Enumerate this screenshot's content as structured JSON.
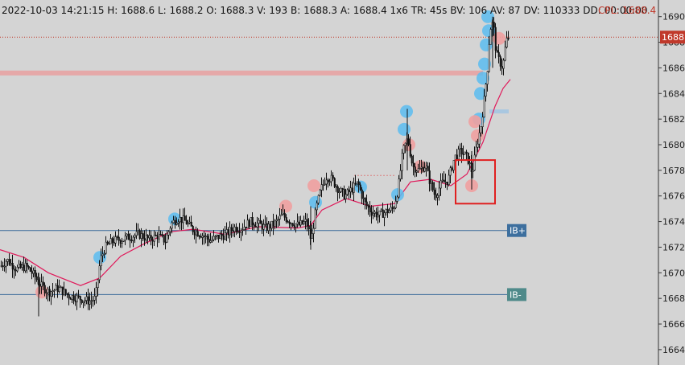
{
  "header": {
    "info_text": "2022-10-03 14:21:15 H: 1688.6 L: 1688.2 O: 1688.3 V: 193 B: 1688.3 A: 1688.4 1x6 TR: 45s BV: 106 AV: 87 DV: 110333 DD: 00:00:00",
    "cpl_text": "CPL: 1688.4"
  },
  "colors": {
    "background": "#d4d4d4",
    "candle": "#111111",
    "ma_line": "#e0195a",
    "buy_dot": "#5bbcf0",
    "sell_dot": "#f0a0a0",
    "ib_line": "#3a6a9a",
    "ib_plus_tag": "#3d6f9e",
    "ib_minus_tag": "#4f8a8a",
    "price_tag": "#c0392b",
    "box": "#e02020",
    "level_band": "#e8a0a0"
  },
  "chart_data": {
    "type": "candlestick",
    "title": "",
    "ylim": [
      1662.8,
      1691.3
    ],
    "y_ticks": [
      "1690",
      "1688",
      "1686",
      "1684",
      "1682",
      "1680",
      "1678",
      "1676",
      "1674",
      "1672",
      "1670",
      "1668",
      "1666",
      "1664"
    ],
    "y_tick_values": [
      1690,
      1688,
      1686,
      1684,
      1682,
      1680,
      1678,
      1676,
      1674,
      1672,
      1670,
      1668,
      1666,
      1664
    ],
    "last_price_label": "1688",
    "last_price": 1688.4,
    "ib_plus": {
      "label": "IB+",
      "price": 1673.3
    },
    "ib_minus": {
      "label": "IB-",
      "price": 1668.3
    },
    "resistance_band": 1685.6,
    "short_band": 1682.6,
    "close_anchors": [
      [
        0,
        1670.5
      ],
      [
        8,
        1671.0
      ],
      [
        20,
        1670.3
      ],
      [
        32,
        1670.5
      ],
      [
        42,
        1669.8
      ],
      [
        50,
        1669.0
      ],
      [
        60,
        1668.5
      ],
      [
        72,
        1668.8
      ],
      [
        85,
        1668.2
      ],
      [
        98,
        1668.0
      ],
      [
        110,
        1667.8
      ],
      [
        118,
        1668.0
      ],
      [
        124,
        1671.0
      ],
      [
        130,
        1672.0
      ],
      [
        140,
        1672.5
      ],
      [
        150,
        1672.6
      ],
      [
        160,
        1672.8
      ],
      [
        172,
        1673.0
      ],
      [
        185,
        1672.6
      ],
      [
        195,
        1672.9
      ],
      [
        205,
        1672.5
      ],
      [
        212,
        1673.8
      ],
      [
        220,
        1674.3
      ],
      [
        230,
        1674.0
      ],
      [
        240,
        1673.3
      ],
      [
        250,
        1673.0
      ],
      [
        260,
        1672.5
      ],
      [
        270,
        1672.8
      ],
      [
        280,
        1673.0
      ],
      [
        290,
        1673.5
      ],
      [
        300,
        1673.5
      ],
      [
        310,
        1674.0
      ],
      [
        320,
        1673.8
      ],
      [
        330,
        1673.5
      ],
      [
        340,
        1673.8
      ],
      [
        350,
        1674.5
      ],
      [
        360,
        1674.0
      ],
      [
        370,
        1673.7
      ],
      [
        380,
        1674.0
      ],
      [
        386,
        1672.5
      ],
      [
        392,
        1675.0
      ],
      [
        398,
        1676.5
      ],
      [
        405,
        1677.5
      ],
      [
        412,
        1677.3
      ],
      [
        420,
        1676.5
      ],
      [
        428,
        1676.0
      ],
      [
        436,
        1676.5
      ],
      [
        444,
        1677.0
      ],
      [
        452,
        1675.5
      ],
      [
        460,
        1674.8
      ],
      [
        470,
        1674.5
      ],
      [
        480,
        1674.8
      ],
      [
        488,
        1675.0
      ],
      [
        494,
        1676.5
      ],
      [
        500,
        1679.5
      ],
      [
        506,
        1680.5
      ],
      [
        512,
        1678.3
      ],
      [
        520,
        1678.0
      ],
      [
        528,
        1678.4
      ],
      [
        534,
        1677.0
      ],
      [
        540,
        1676.0
      ],
      [
        548,
        1677.0
      ],
      [
        556,
        1677.2
      ],
      [
        564,
        1679.0
      ],
      [
        572,
        1679.5
      ],
      [
        580,
        1679.0
      ],
      [
        586,
        1677.8
      ],
      [
        592,
        1680.0
      ],
      [
        597,
        1681.5
      ],
      [
        601,
        1683.5
      ],
      [
        605,
        1686.0
      ],
      [
        608,
        1689.0
      ],
      [
        612,
        1689.6
      ],
      [
        616,
        1687.0
      ],
      [
        620,
        1686.5
      ],
      [
        624,
        1686.0
      ],
      [
        628,
        1688.0
      ],
      [
        631,
        1688.4
      ]
    ],
    "ma_anchors": [
      [
        0,
        1671.8
      ],
      [
        30,
        1671.2
      ],
      [
        60,
        1670.0
      ],
      [
        100,
        1669.0
      ],
      [
        124,
        1669.6
      ],
      [
        150,
        1671.3
      ],
      [
        180,
        1672.3
      ],
      [
        212,
        1673.2
      ],
      [
        240,
        1673.4
      ],
      [
        280,
        1673.0
      ],
      [
        320,
        1673.6
      ],
      [
        370,
        1673.5
      ],
      [
        386,
        1673.7
      ],
      [
        400,
        1674.9
      ],
      [
        430,
        1675.8
      ],
      [
        460,
        1675.2
      ],
      [
        490,
        1675.4
      ],
      [
        510,
        1677.1
      ],
      [
        535,
        1677.3
      ],
      [
        560,
        1676.8
      ],
      [
        580,
        1677.7
      ],
      [
        600,
        1680.2
      ],
      [
        615,
        1683.0
      ],
      [
        625,
        1684.4
      ],
      [
        634,
        1685.1
      ]
    ],
    "buy_dots": [
      [
        124,
        1671.2
      ],
      [
        217,
        1674.2
      ],
      [
        392,
        1675.5
      ],
      [
        448,
        1676.7
      ],
      [
        494,
        1676.1
      ],
      [
        502,
        1681.2
      ],
      [
        505,
        1682.6
      ],
      [
        595,
        1682.0
      ],
      [
        597,
        1684.0
      ],
      [
        600,
        1685.2
      ],
      [
        602,
        1686.3
      ],
      [
        604,
        1687.8
      ],
      [
        607,
        1688.9
      ],
      [
        606,
        1690.0
      ]
    ],
    "sell_dots": [
      [
        52,
        1668.5
      ],
      [
        355,
        1675.2
      ],
      [
        390,
        1676.8
      ],
      [
        508,
        1680.0
      ],
      [
        522,
        1678.3
      ],
      [
        586,
        1676.8
      ],
      [
        590,
        1681.8
      ],
      [
        593,
        1680.7
      ],
      [
        620,
        1688.3
      ]
    ],
    "highlight_box": {
      "x_from": 566,
      "x_to": 615,
      "price_top": 1678.8,
      "price_bottom": 1675.4
    }
  }
}
